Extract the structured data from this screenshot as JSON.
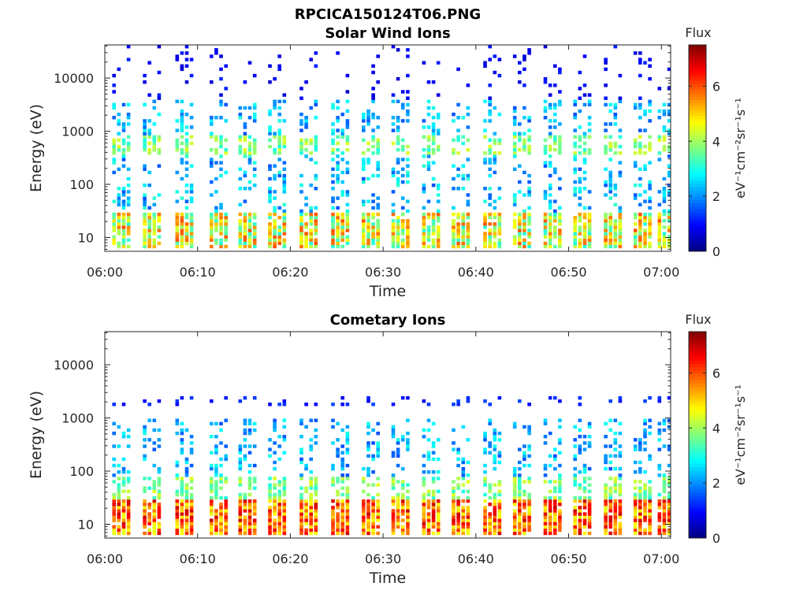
{
  "figure_title": "RPCICA150124T06.PNG",
  "chart_data": [
    {
      "type": "heatmap",
      "title": "Solar Wind Ions",
      "xlabel": "Time",
      "ylabel": "Energy (eV)",
      "x_ticks": [
        "06:00",
        "06:10",
        "06:20",
        "06:30",
        "06:40",
        "06:50",
        "07:00"
      ],
      "x_range_minutes": [
        0,
        61
      ],
      "y_scale": "log",
      "y_ticks": [
        "10",
        "100",
        "1000",
        "10000"
      ],
      "y_range": [
        5.5,
        42000
      ],
      "colorbar": {
        "title": "Flux",
        "label": "eV⁻¹cm⁻²sr⁻¹s⁻¹",
        "ticks": [
          "0",
          "2",
          "4",
          "6"
        ],
        "range": [
          0,
          7.5
        ],
        "colormap": "jet"
      },
      "scans_start_minutes": [
        0.8,
        4.1,
        7.6,
        11.3,
        14.4,
        17.6,
        21.0,
        24.4,
        27.7,
        30.9,
        34.2,
        37.4,
        40.8,
        44.0,
        47.3,
        50.5,
        53.8,
        57.0,
        59.6
      ],
      "bands": [
        {
          "e_min": 6,
          "e_max": 30,
          "flux_min": 3.0,
          "flux_max": 6.0,
          "density": 0.9
        },
        {
          "e_min": 30,
          "e_max": 350,
          "flux_min": 1.5,
          "flux_max": 3.2,
          "density": 0.3
        },
        {
          "e_min": 350,
          "e_max": 800,
          "flux_min": 3.0,
          "flux_max": 4.5,
          "density": 0.55
        },
        {
          "e_min": 800,
          "e_max": 4000,
          "flux_min": 1.5,
          "flux_max": 3.0,
          "density": 0.3
        },
        {
          "e_min": 4000,
          "e_max": 40000,
          "flux_min": 0.6,
          "flux_max": 1.2,
          "density": 0.12
        }
      ]
    },
    {
      "type": "heatmap",
      "title": "Cometary Ions",
      "xlabel": "Time",
      "ylabel": "Energy (eV)",
      "x_ticks": [
        "06:00",
        "06:10",
        "06:20",
        "06:30",
        "06:40",
        "06:50",
        "07:00"
      ],
      "x_range_minutes": [
        0,
        61
      ],
      "y_scale": "log",
      "y_ticks": [
        "10",
        "100",
        "1000",
        "10000"
      ],
      "y_range": [
        5.5,
        42000
      ],
      "colorbar": {
        "title": "Flux",
        "label": "eV⁻¹cm⁻²sr⁻¹s⁻¹",
        "ticks": [
          "0",
          "2",
          "4",
          "6"
        ],
        "range": [
          0,
          7.5
        ],
        "colormap": "jet"
      },
      "scans_start_minutes": [
        0.8,
        4.1,
        7.6,
        11.3,
        14.4,
        17.6,
        21.0,
        24.4,
        27.7,
        30.9,
        34.2,
        37.4,
        40.8,
        44.0,
        47.3,
        50.5,
        53.8,
        57.0,
        59.6
      ],
      "bands": [
        {
          "e_min": 6,
          "e_max": 30,
          "flux_min": 4.5,
          "flux_max": 7.0,
          "density": 0.95
        },
        {
          "e_min": 30,
          "e_max": 80,
          "flux_min": 3.0,
          "flux_max": 4.5,
          "density": 0.6
        },
        {
          "e_min": 80,
          "e_max": 1000,
          "flux_min": 1.5,
          "flux_max": 3.0,
          "density": 0.3
        },
        {
          "e_min": 1800,
          "e_max": 2600,
          "flux_min": 0.8,
          "flux_max": 1.5,
          "density": 0.25
        }
      ]
    }
  ]
}
